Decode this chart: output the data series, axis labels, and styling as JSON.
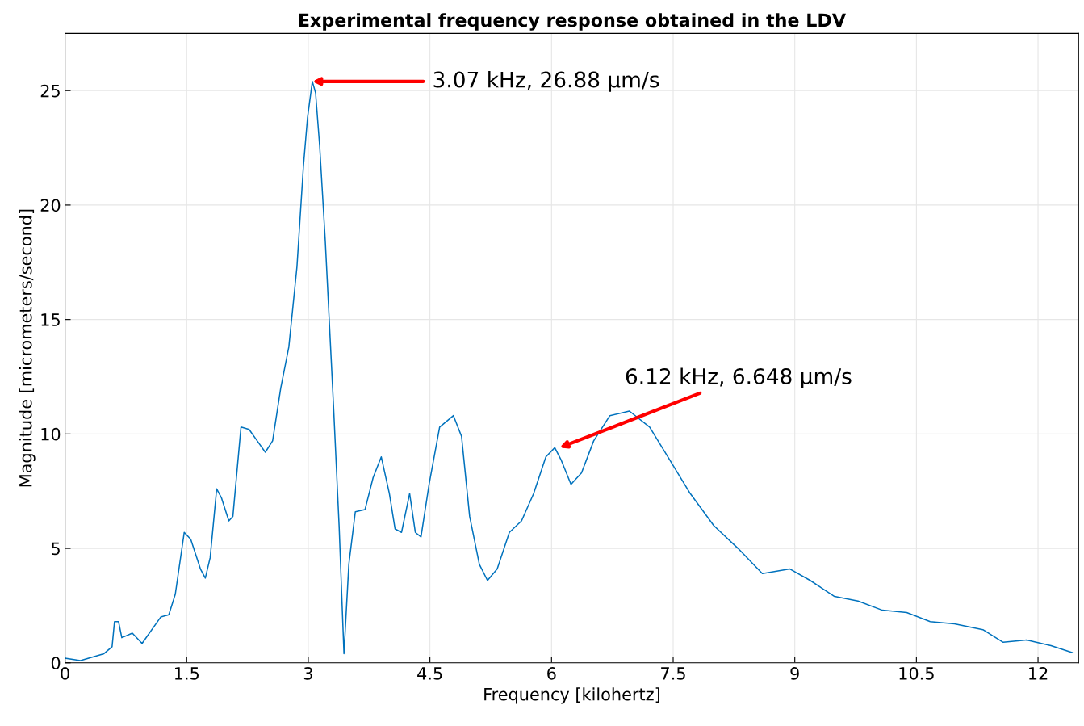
{
  "chart_data": {
    "type": "line",
    "title": "Experimental frequency response obtained in the LDV",
    "xlabel": "Frequency [kilohertz]",
    "ylabel": "Magnitude [micrometers/second]",
    "x": [
      0,
      0.19,
      0.48,
      0.58,
      0.61,
      0.66,
      0.7,
      0.83,
      0.95,
      1.18,
      1.28,
      1.36,
      1.47,
      1.55,
      1.67,
      1.73,
      1.79,
      1.87,
      1.93,
      2.02,
      2.07,
      2.17,
      2.27,
      2.37,
      2.47,
      2.56,
      2.66,
      2.76,
      2.86,
      2.94,
      2.99,
      3.05,
      3.09,
      3.14,
      3.21,
      3.31,
      3.38,
      3.44,
      3.5,
      3.58,
      3.7,
      3.8,
      3.9,
      4.0,
      4.07,
      4.15,
      4.25,
      4.32,
      4.39,
      4.49,
      4.62,
      4.79,
      4.89,
      4.99,
      5.11,
      5.21,
      5.33,
      5.48,
      5.63,
      5.78,
      5.93,
      6.04,
      6.12,
      6.24,
      6.37,
      6.52,
      6.72,
      6.96,
      7.21,
      7.46,
      7.71,
      8.0,
      8.3,
      8.6,
      8.94,
      9.19,
      9.49,
      9.78,
      10.08,
      10.38,
      10.67,
      10.97,
      11.32,
      11.57,
      11.86,
      12.16,
      12.42
    ],
    "series": [
      {
        "color": "#0072bd",
        "values": [
          0.2,
          0.1,
          0.4,
          0.7,
          1.8,
          1.8,
          1.1,
          1.3,
          0.85,
          2.0,
          2.1,
          3.0,
          5.7,
          5.4,
          4.1,
          3.7,
          4.6,
          7.6,
          7.2,
          6.2,
          6.4,
          10.3,
          10.2,
          9.7,
          9.2,
          9.7,
          12.0,
          13.8,
          17.3,
          21.7,
          23.8,
          25.4,
          24.9,
          22.6,
          18.4,
          11.3,
          6.0,
          0.4,
          4.3,
          6.6,
          6.7,
          8.1,
          9.0,
          7.4,
          5.85,
          5.7,
          7.4,
          5.7,
          5.5,
          7.8,
          10.3,
          10.8,
          9.9,
          6.4,
          4.3,
          3.6,
          4.1,
          5.7,
          6.2,
          7.4,
          9.0,
          9.4,
          8.85,
          7.8,
          8.3,
          9.7,
          10.8,
          11.0,
          10.3,
          8.85,
          7.4,
          6.0,
          5.0,
          3.9,
          4.1,
          3.6,
          2.9,
          2.7,
          2.3,
          2.2,
          1.8,
          1.7,
          1.45,
          0.9,
          1.0,
          0.75,
          0.45
        ]
      }
    ],
    "xlim": [
      0,
      12.5
    ],
    "ylim": [
      0,
      27.5
    ],
    "xticks": [
      0,
      1.5,
      3,
      4.5,
      6,
      7.5,
      9,
      10.5,
      12
    ],
    "yticks": [
      0,
      5,
      10,
      15,
      20,
      25
    ],
    "grid": true,
    "marker": "none",
    "line_style": "solid",
    "annotations": [
      {
        "text": "3.07 kHz, 26.88 μm/s",
        "x": 3.05,
        "y": 25.4
      },
      {
        "text": "6.12 kHz, 6.648 μm/s",
        "x": 6.1,
        "y": 9.4
      }
    ]
  }
}
